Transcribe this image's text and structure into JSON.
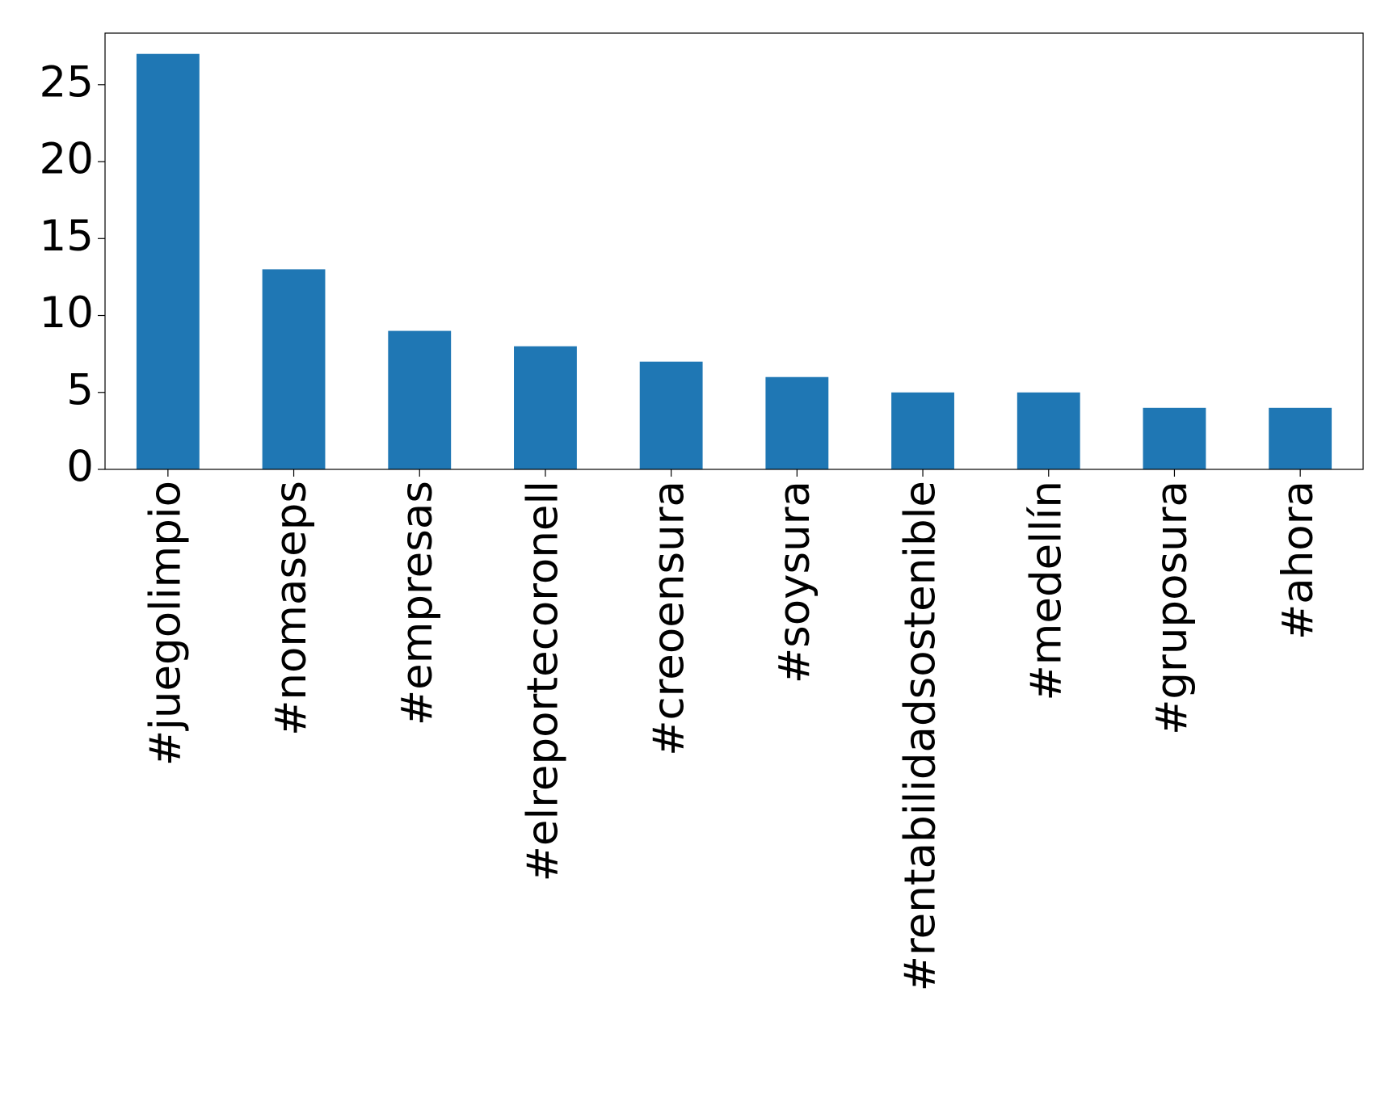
{
  "chart_data": {
    "type": "bar",
    "categories": [
      "#juegolimpio",
      "#nomaseps",
      "#empresas",
      "#elreportecoronell",
      "#creoensura",
      "#soysura",
      "#rentabilidadsostenible",
      "#medellín",
      "#gruposura",
      "#ahora"
    ],
    "values": [
      27,
      13,
      9,
      8,
      7,
      6,
      5,
      5,
      4,
      4
    ],
    "color": "#1f77b4",
    "ylim": [
      0,
      28.35
    ],
    "yticks": [
      0,
      5,
      10,
      15,
      20,
      25
    ],
    "grid": false
  }
}
